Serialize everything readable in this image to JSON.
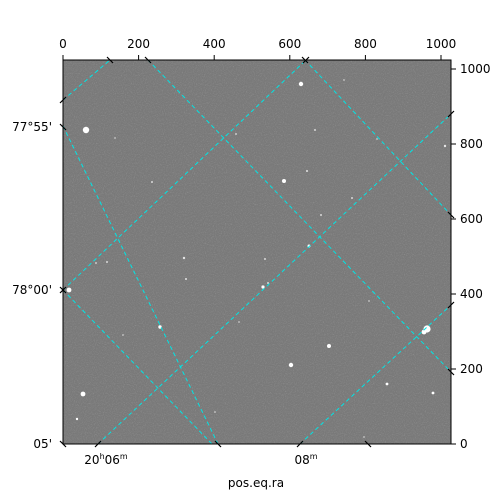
{
  "image": {
    "description_colors": {
      "sky_background": "#7b7b7b",
      "grid_line": "#00e5e5",
      "star": "#ffffff",
      "axes": "#000000"
    }
  },
  "axes": {
    "pixel_x_ticks": [
      "0",
      "200",
      "400",
      "600",
      "800",
      "1000"
    ],
    "pixel_y_ticks": [
      "0",
      "200",
      "400",
      "600",
      "800",
      "1000"
    ],
    "dec_ticks": [
      "77°55'",
      "78°00'",
      "05'"
    ],
    "ra_ticks": [
      "20h06m",
      "08m"
    ],
    "ra_tick_parts": [
      {
        "main": "20",
        "sup1": "h",
        "mid": "06",
        "sup2": "m"
      },
      {
        "main": "08",
        "sup1": "",
        "mid": "",
        "sup2": "m"
      }
    ],
    "xlabel": "pos.eq.ra"
  }
}
